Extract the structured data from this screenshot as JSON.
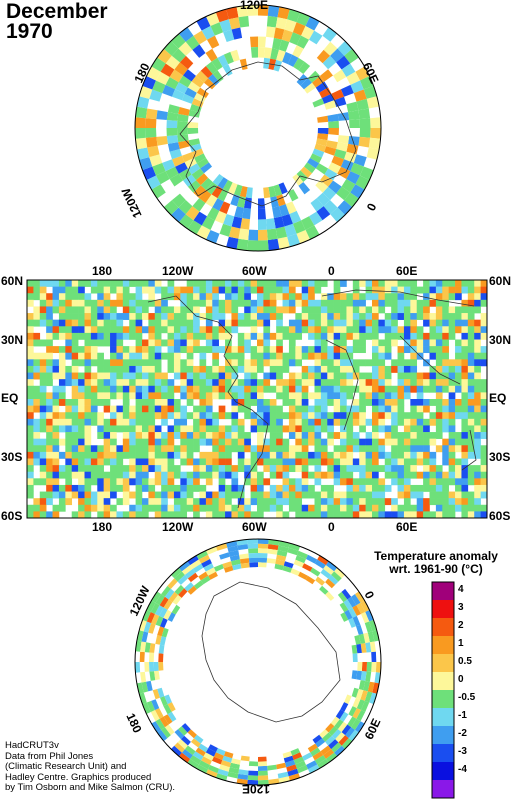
{
  "title": {
    "month": "December",
    "year": "1970"
  },
  "north_polar": {
    "lon_labels": [
      "120E",
      "180",
      "60E",
      "120W",
      "0"
    ]
  },
  "main_map": {
    "lat_labels_left": [
      "60N",
      "30N",
      "EQ",
      "30S",
      "60S"
    ],
    "lat_labels_right": [
      "60N",
      "30N",
      "EQ",
      "30S",
      "60S"
    ],
    "lon_labels_top": [
      "180",
      "120W",
      "60W",
      "0",
      "60E"
    ],
    "lon_labels_bottom": [
      "180",
      "120W",
      "60W",
      "0",
      "60E"
    ]
  },
  "south_polar": {
    "lon_labels": [
      "120W",
      "0",
      "180",
      "60E",
      "120E"
    ]
  },
  "legend": {
    "title_line1": "Temperature anomaly",
    "title_line2": "wrt. 1961-90  (°C)",
    "entries": [
      {
        "label": "4",
        "color": "#a0007a"
      },
      {
        "label": "3",
        "color": "#ee1010"
      },
      {
        "label": "2",
        "color": "#f55a10"
      },
      {
        "label": "1",
        "color": "#f99a20"
      },
      {
        "label": "0.5",
        "color": "#fbc64a"
      },
      {
        "label": "0",
        "color": "#fdf79a"
      },
      {
        "label": "-0.5",
        "color": "#6ee07a"
      },
      {
        "label": "-1",
        "color": "#6fd8f0"
      },
      {
        "label": "-2",
        "color": "#3f9ef0"
      },
      {
        "label": "-3",
        "color": "#1a4ef0"
      },
      {
        "label": "-4",
        "color": "#0a10e0"
      },
      {
        "label": "",
        "color": "#8a18e8"
      }
    ]
  },
  "credits": {
    "line1": "HadCRUT3v",
    "line2": "Data from Phil Jones",
    "line3": "(Climatic Research Unit) and",
    "line4": "Hadley Centre.  Graphics produced",
    "line5": "by Tim Osborn and Mike Salmon (CRU)."
  }
}
